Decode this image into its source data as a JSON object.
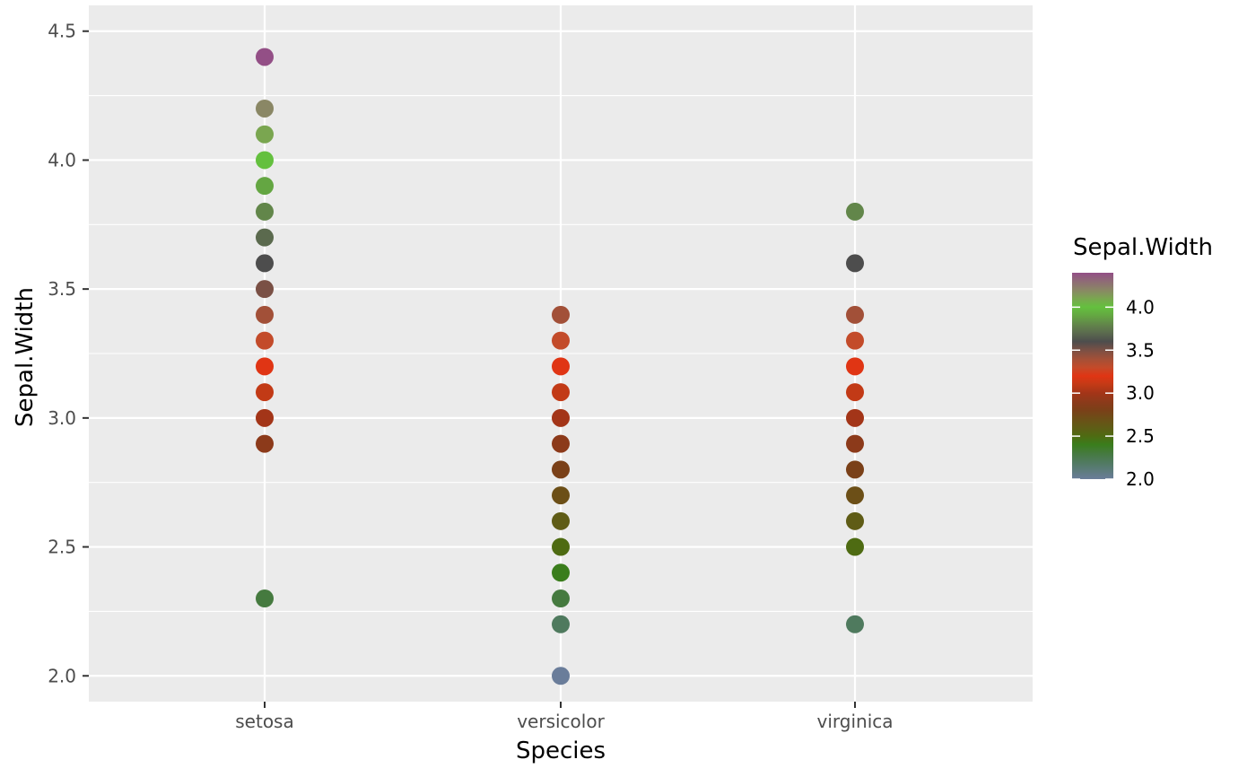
{
  "chart_data": {
    "type": "scatter",
    "title": "",
    "xlabel": "Species",
    "ylabel": "Sepal.Width",
    "categories": [
      "setosa",
      "versicolor",
      "virginica"
    ],
    "ylim": [
      1.9,
      4.6
    ],
    "y_ticks": [
      "2.0",
      "2.5",
      "3.0",
      "3.5",
      "4.0",
      "4.5"
    ],
    "y_tick_values": [
      2.0,
      2.5,
      3.0,
      3.5,
      4.0,
      4.5
    ],
    "grid": true,
    "series": [
      {
        "category": "setosa",
        "values": [
          2.3,
          2.9,
          3.0,
          3.1,
          3.2,
          3.3,
          3.4,
          3.5,
          3.6,
          3.7,
          3.8,
          3.9,
          4.0,
          4.1,
          4.2,
          4.4
        ]
      },
      {
        "category": "versicolor",
        "values": [
          2.0,
          2.2,
          2.3,
          2.4,
          2.5,
          2.6,
          2.7,
          2.8,
          2.9,
          3.0,
          3.1,
          3.2,
          3.3,
          3.4
        ]
      },
      {
        "category": "virginica",
        "values": [
          2.2,
          2.5,
          2.6,
          2.7,
          2.8,
          2.9,
          3.0,
          3.1,
          3.2,
          3.3,
          3.4,
          3.6,
          3.8
        ]
      }
    ],
    "legend": {
      "title": "Sepal.Width",
      "position": "right",
      "labels": [
        "4.0",
        "3.5",
        "3.0",
        "2.5",
        "2.0"
      ],
      "label_values": [
        4.0,
        3.5,
        3.0,
        2.5,
        2.0
      ],
      "range": [
        2.0,
        4.4
      ]
    },
    "color_scale": [
      {
        "value": 2.0,
        "color": "#6a7d9a"
      },
      {
        "value": 2.2,
        "color": "#4f7a5e"
      },
      {
        "value": 2.3,
        "color": "#457a3f"
      },
      {
        "value": 2.4,
        "color": "#3a7d1c"
      },
      {
        "value": 2.5,
        "color": "#4e6b12"
      },
      {
        "value": 2.6,
        "color": "#5f5c16"
      },
      {
        "value": 2.7,
        "color": "#6c4f17"
      },
      {
        "value": 2.8,
        "color": "#7a4018"
      },
      {
        "value": 2.9,
        "color": "#8c3a1a"
      },
      {
        "value": 3.0,
        "color": "#a33518"
      },
      {
        "value": 3.1,
        "color": "#c23a16"
      },
      {
        "value": 3.2,
        "color": "#e03514"
      },
      {
        "value": 3.3,
        "color": "#c34b2a"
      },
      {
        "value": 3.4,
        "color": "#a25038"
      },
      {
        "value": 3.5,
        "color": "#7a5045"
      },
      {
        "value": 3.6,
        "color": "#4d4d4d"
      },
      {
        "value": 3.7,
        "color": "#5b6a4e"
      },
      {
        "value": 3.8,
        "color": "#62864a"
      },
      {
        "value": 3.9,
        "color": "#64a642"
      },
      {
        "value": 4.0,
        "color": "#64c03e"
      },
      {
        "value": 4.1,
        "color": "#7aa650"
      },
      {
        "value": 4.2,
        "color": "#8a8765"
      },
      {
        "value": 4.4,
        "color": "#934f86"
      }
    ]
  }
}
